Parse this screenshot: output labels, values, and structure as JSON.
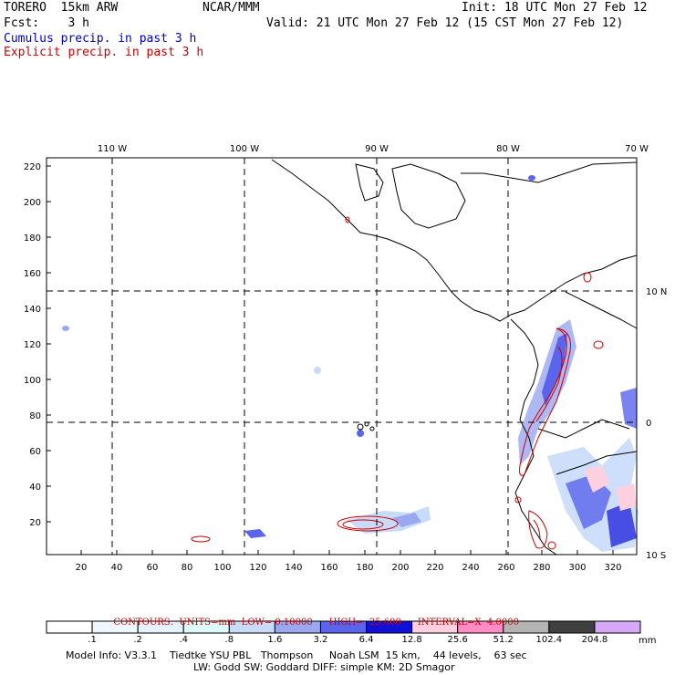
{
  "header": {
    "model": "TORERO  15km ARW",
    "org": "NCAR/MMM",
    "init": "Init: 18 UTC Mon 27 Feb 12",
    "fcst": "Fcst:    3 h",
    "valid": "Valid: 21 UTC Mon 27 Feb 12 (15 CST Mon 27 Feb 12)",
    "field1": "Cumulus precip. in past 3 h",
    "field2": "Explicit precip. in past 3 h",
    "field1_color": "#0000cc",
    "field2_color": "#cc0000"
  },
  "map": {
    "top_lon_labels": [
      "110 W",
      "100 W",
      "90 W",
      "80 W",
      "70 W"
    ],
    "right_lat_labels": [
      "10 N",
      "0",
      "10 S"
    ],
    "y_tick_labels": [
      "20",
      "40",
      "60",
      "80",
      "100",
      "120",
      "140",
      "160",
      "180",
      "200",
      "220"
    ],
    "x_tick_labels": [
      "20",
      "40",
      "60",
      "80",
      "100",
      "120",
      "140",
      "160",
      "180",
      "200",
      "220",
      "240",
      "260",
      "280",
      "300",
      "320"
    ]
  },
  "contour_info": {
    "contours": "CONTOURS:  UNITS=mm  LOW= 0.10000",
    "high": "HIGH=  25.600",
    "interval": "INTERVAL=X  4.0000"
  },
  "colorbar": {
    "unit": "mm",
    "labels": [
      ".1",
      ".2",
      ".4",
      ".8",
      "1.6",
      "3.2",
      "6.4",
      "12.8",
      "25.6",
      "51.2",
      "102.4",
      "204.8"
    ],
    "colors": [
      "#ffffff",
      "#f0f8ff",
      "#e4f1ff",
      "#dcfafa",
      "#c8dcfa",
      "#9aa8f0",
      "#5a64ec",
      "#1010d8",
      "#ffd0e0",
      "#ff8cc4",
      "#b4b4b4",
      "#404040",
      "#d8a8f8"
    ]
  },
  "footer": {
    "line1": "Model Info: V3.3.1    Tiedtke YSU PBL   Thompson     Noah LSM  15 km,    44 levels,    63 sec",
    "line2": "LW: Godd SW: Goddard DIFF: simple KM: 2D Smagor"
  }
}
